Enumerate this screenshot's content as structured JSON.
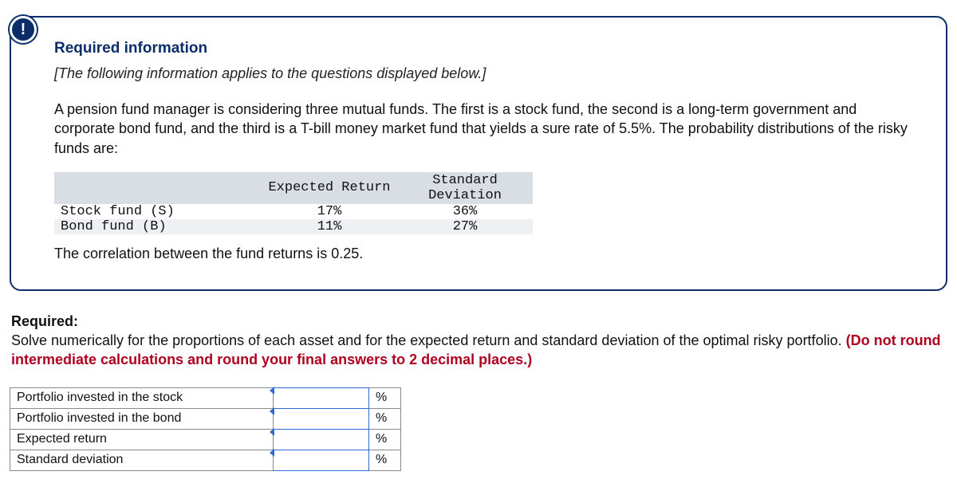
{
  "info_box": {
    "badge": "!",
    "title": "Required information",
    "applies_note": "[The following information applies to the questions displayed below.]",
    "paragraph": "A pension fund manager is considering three mutual funds. The first is a stock fund, the second is a long-term government and corporate bond fund, and the third is a T-bill money market fund that yields a sure rate of 5.5%. The probability distributions of the risky funds are:",
    "fund_table": {
      "headers": {
        "blank": "",
        "col1": "Expected Return",
        "col2": "Standard Deviation"
      },
      "rows": [
        {
          "label": "Stock fund (S)",
          "exp_return": "17%",
          "std_dev": "36%"
        },
        {
          "label": "Bond fund (B)",
          "exp_return": "11%",
          "std_dev": "27%"
        }
      ]
    },
    "correlation_line": "The correlation between the fund returns is 0.25."
  },
  "required": {
    "label": "Required:",
    "text": "Solve numerically for the proportions of each asset and for the expected return and standard deviation of the optimal risky portfolio. ",
    "warn": "(Do not round intermediate calculations and round your final answers to 2 decimal places.)"
  },
  "answer_table": {
    "unit": "%",
    "rows": [
      {
        "label": "Portfolio invested in the stock",
        "value": ""
      },
      {
        "label": "Portfolio invested in the bond",
        "value": ""
      },
      {
        "label": "Expected return",
        "value": ""
      },
      {
        "label": "Standard deviation",
        "value": ""
      }
    ]
  }
}
